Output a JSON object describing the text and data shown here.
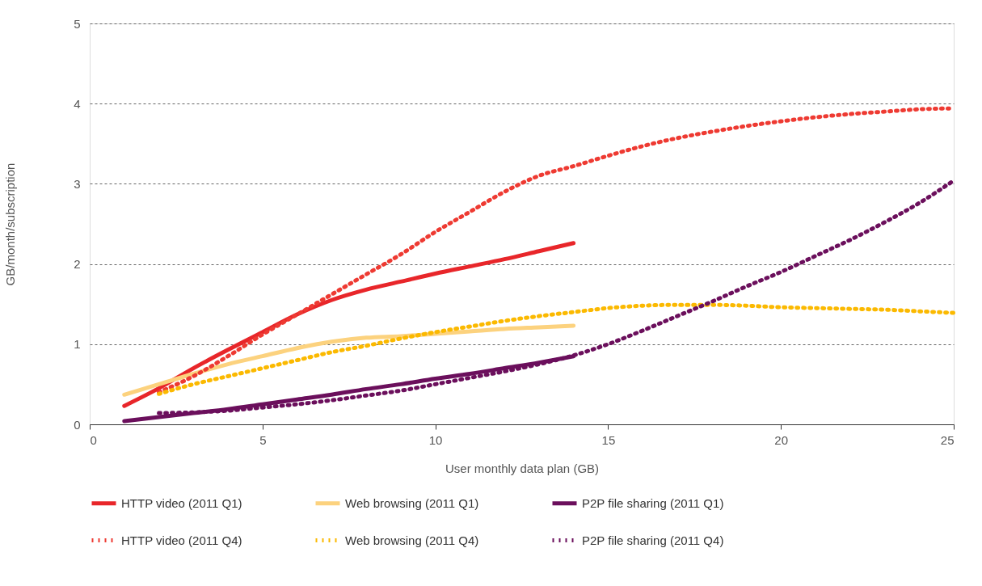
{
  "chart_data": {
    "type": "line",
    "xlabel": "User monthly data plan (GB)",
    "ylabel": "GB/month/subscription",
    "xlim": [
      0,
      25
    ],
    "xticks": [
      0,
      5,
      10,
      15,
      20,
      25
    ],
    "ylim": [
      0,
      5
    ],
    "yticks": [
      0,
      1,
      2,
      3,
      4,
      5
    ],
    "grid": "y",
    "legend": "bottom",
    "marker": "none",
    "series": [
      {
        "name": "HTTP video (2011 Q1)",
        "color": "#e8262a",
        "line_style": "solid",
        "x": [
          1,
          2,
          3,
          4,
          5,
          6,
          7,
          8,
          9,
          10,
          11,
          12,
          13,
          14
        ],
        "values": [
          0.23,
          0.45,
          0.7,
          0.93,
          1.15,
          1.37,
          1.55,
          1.68,
          1.78,
          1.88,
          1.97,
          2.06,
          2.16,
          2.26
        ]
      },
      {
        "name": "Web browsing (2011 Q1)",
        "color": "#fcd27e",
        "line_style": "solid",
        "x": [
          1,
          2,
          3,
          4,
          5,
          6,
          7,
          8,
          9,
          10,
          11,
          12,
          13,
          14
        ],
        "values": [
          0.37,
          0.5,
          0.63,
          0.75,
          0.85,
          0.95,
          1.03,
          1.08,
          1.1,
          1.13,
          1.16,
          1.19,
          1.21,
          1.23
        ]
      },
      {
        "name": "P2P file sharing (2011 Q1)",
        "color": "#6b0f5c",
        "line_style": "solid",
        "x": [
          1,
          2,
          3,
          4,
          5,
          6,
          7,
          8,
          9,
          10,
          11,
          12,
          13,
          14
        ],
        "values": [
          0.04,
          0.09,
          0.14,
          0.19,
          0.25,
          0.31,
          0.37,
          0.44,
          0.5,
          0.57,
          0.63,
          0.7,
          0.77,
          0.85
        ]
      },
      {
        "name": "HTTP video (2011 Q4)",
        "color": "#ee3a32",
        "line_style": "dotted",
        "x": [
          2,
          3,
          4,
          5,
          6,
          7,
          8,
          9,
          10,
          11,
          12,
          13,
          14,
          15,
          16,
          17,
          18,
          19,
          20,
          21,
          22,
          23,
          24,
          25
        ],
        "values": [
          0.4,
          0.6,
          0.85,
          1.12,
          1.37,
          1.62,
          1.87,
          2.12,
          2.4,
          2.65,
          2.9,
          3.1,
          3.22,
          3.35,
          3.47,
          3.57,
          3.65,
          3.72,
          3.78,
          3.83,
          3.87,
          3.9,
          3.93,
          3.94
        ]
      },
      {
        "name": "Web browsing (2011 Q4)",
        "color": "#fbb900",
        "line_style": "dotted",
        "x": [
          2,
          3,
          4,
          5,
          6,
          7,
          8,
          9,
          10,
          11,
          12,
          13,
          14,
          15,
          16,
          17,
          18,
          19,
          20,
          21,
          22,
          23,
          24,
          25
        ],
        "values": [
          0.38,
          0.5,
          0.6,
          0.7,
          0.8,
          0.9,
          0.98,
          1.07,
          1.15,
          1.22,
          1.29,
          1.35,
          1.4,
          1.45,
          1.48,
          1.49,
          1.49,
          1.48,
          1.46,
          1.45,
          1.44,
          1.43,
          1.41,
          1.39
        ]
      },
      {
        "name": "P2P file sharing (2011 Q4)",
        "color": "#6b0f5c",
        "line_style": "dotted",
        "x": [
          2,
          3,
          4,
          5,
          6,
          7,
          8,
          9,
          10,
          11,
          12,
          13,
          14,
          15,
          16,
          17,
          18,
          19,
          20,
          21,
          22,
          23,
          24,
          25
        ],
        "values": [
          0.14,
          0.15,
          0.17,
          0.21,
          0.25,
          0.3,
          0.36,
          0.42,
          0.5,
          0.58,
          0.66,
          0.75,
          0.86,
          1.0,
          1.17,
          1.35,
          1.53,
          1.72,
          1.9,
          2.1,
          2.3,
          2.52,
          2.76,
          3.04
        ]
      }
    ]
  }
}
